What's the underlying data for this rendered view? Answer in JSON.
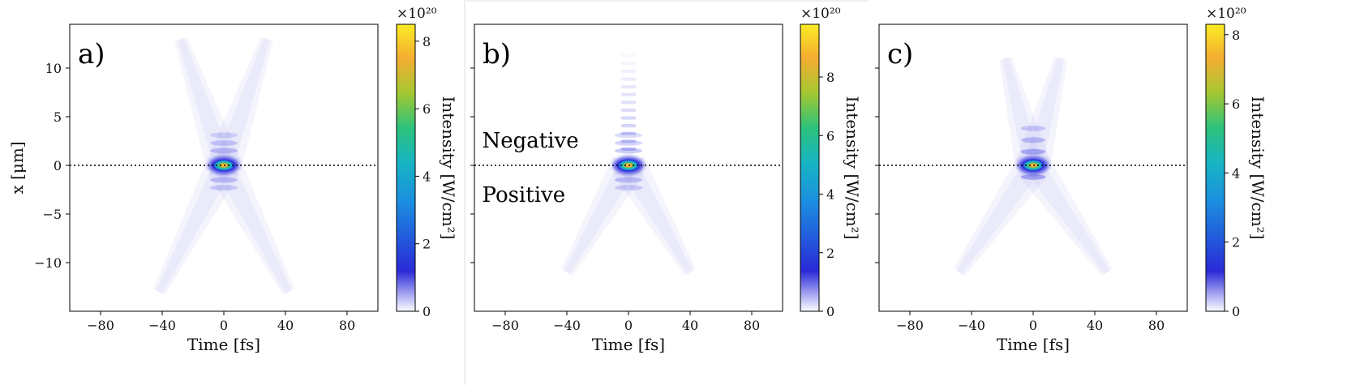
{
  "chart_data": [
    {
      "type": "heatmap",
      "panel_label": "a)",
      "xlabel": "Time [fs]",
      "ylabel": "x [μm]",
      "xlim": [
        -100,
        100
      ],
      "ylim": [
        -15,
        14.5
      ],
      "xticks": [
        -80,
        -40,
        0,
        40,
        80
      ],
      "xtick_labels": [
        "−80",
        "−40",
        "0",
        "40",
        "80"
      ],
      "yticks": [
        -10,
        -5,
        0,
        5,
        10
      ],
      "ytick_labels": [
        "−10",
        "−5",
        "0",
        "5",
        "10"
      ],
      "show_ylabel": true,
      "show_ytick_labels": true,
      "reference_line_y": 0,
      "pattern": "x-shape",
      "arms": {
        "top_left": [
          -28,
          13
        ],
        "top_right": [
          28,
          13
        ],
        "bottom_left": [
          -42,
          -13
        ],
        "bottom_right": [
          42,
          -13
        ]
      },
      "peak_intensity": 8.5,
      "colorbar": {
        "label": "Intensity [W/cm²]",
        "scale": "×10²⁰",
        "range": [
          0,
          8.5
        ],
        "ticks": [
          0,
          2,
          4,
          6,
          8
        ],
        "tick_labels": [
          "0",
          "2",
          "4",
          "6",
          "8"
        ]
      },
      "annotations": []
    },
    {
      "type": "heatmap",
      "panel_label": "b)",
      "xlabel": "Time [fs]",
      "ylabel": "",
      "xlim": [
        -100,
        100
      ],
      "ylim": [
        -15,
        14.5
      ],
      "xticks": [
        -80,
        -40,
        0,
        40,
        80
      ],
      "xtick_labels": [
        "−80",
        "−40",
        "0",
        "40",
        "80"
      ],
      "yticks": [
        -10,
        -5,
        0,
        5,
        10
      ],
      "ytick_labels": [],
      "show_ylabel": false,
      "show_ytick_labels": false,
      "reference_line_y": 0,
      "pattern": "column-top-x-bottom",
      "arms": {
        "bottom_left": [
          -40,
          -11
        ],
        "bottom_right": [
          40,
          -11
        ]
      },
      "peak_intensity": 9.8,
      "colorbar": {
        "label": "Intensity [W/cm²]",
        "scale": "×10²⁰",
        "range": [
          0,
          9.8
        ],
        "ticks": [
          0,
          2,
          4,
          6,
          8
        ],
        "tick_labels": [
          "0",
          "2",
          "4",
          "6",
          "8"
        ]
      },
      "annotations": [
        {
          "text": "Negative",
          "x": -95,
          "y": 2.6
        },
        {
          "text": "Positive",
          "x": -95,
          "y": -3.0
        }
      ]
    },
    {
      "type": "heatmap",
      "panel_label": "c)",
      "xlabel": "Time [fs]",
      "ylabel": "",
      "xlim": [
        -100,
        100
      ],
      "ylim": [
        -15,
        14.5
      ],
      "xticks": [
        -80,
        -40,
        0,
        40,
        80
      ],
      "xtick_labels": [
        "−80",
        "−40",
        "0",
        "40",
        "80"
      ],
      "yticks": [
        -10,
        -5,
        0,
        5,
        10
      ],
      "ytick_labels": [],
      "show_ylabel": false,
      "show_ytick_labels": false,
      "reference_line_y": 0,
      "pattern": "x-shape-banded",
      "arms": {
        "top_left": [
          -18,
          11
        ],
        "top_right": [
          18,
          11
        ],
        "bottom_left": [
          -48,
          -11
        ],
        "bottom_right": [
          48,
          -11
        ]
      },
      "peak_intensity": 8.3,
      "colorbar": {
        "label": "Intensity [W/cm²]",
        "scale": "×10²⁰",
        "range": [
          0,
          8.3
        ],
        "ticks": [
          0,
          2,
          4,
          6,
          8
        ],
        "tick_labels": [
          "0",
          "2",
          "4",
          "6",
          "8"
        ]
      },
      "annotations": []
    }
  ],
  "colormap": [
    "#ffffff",
    "#9a9af2",
    "#2a2ad8",
    "#1aa6d8",
    "#2bc48a",
    "#8fce3a",
    "#f7a431",
    "#fbe825"
  ]
}
